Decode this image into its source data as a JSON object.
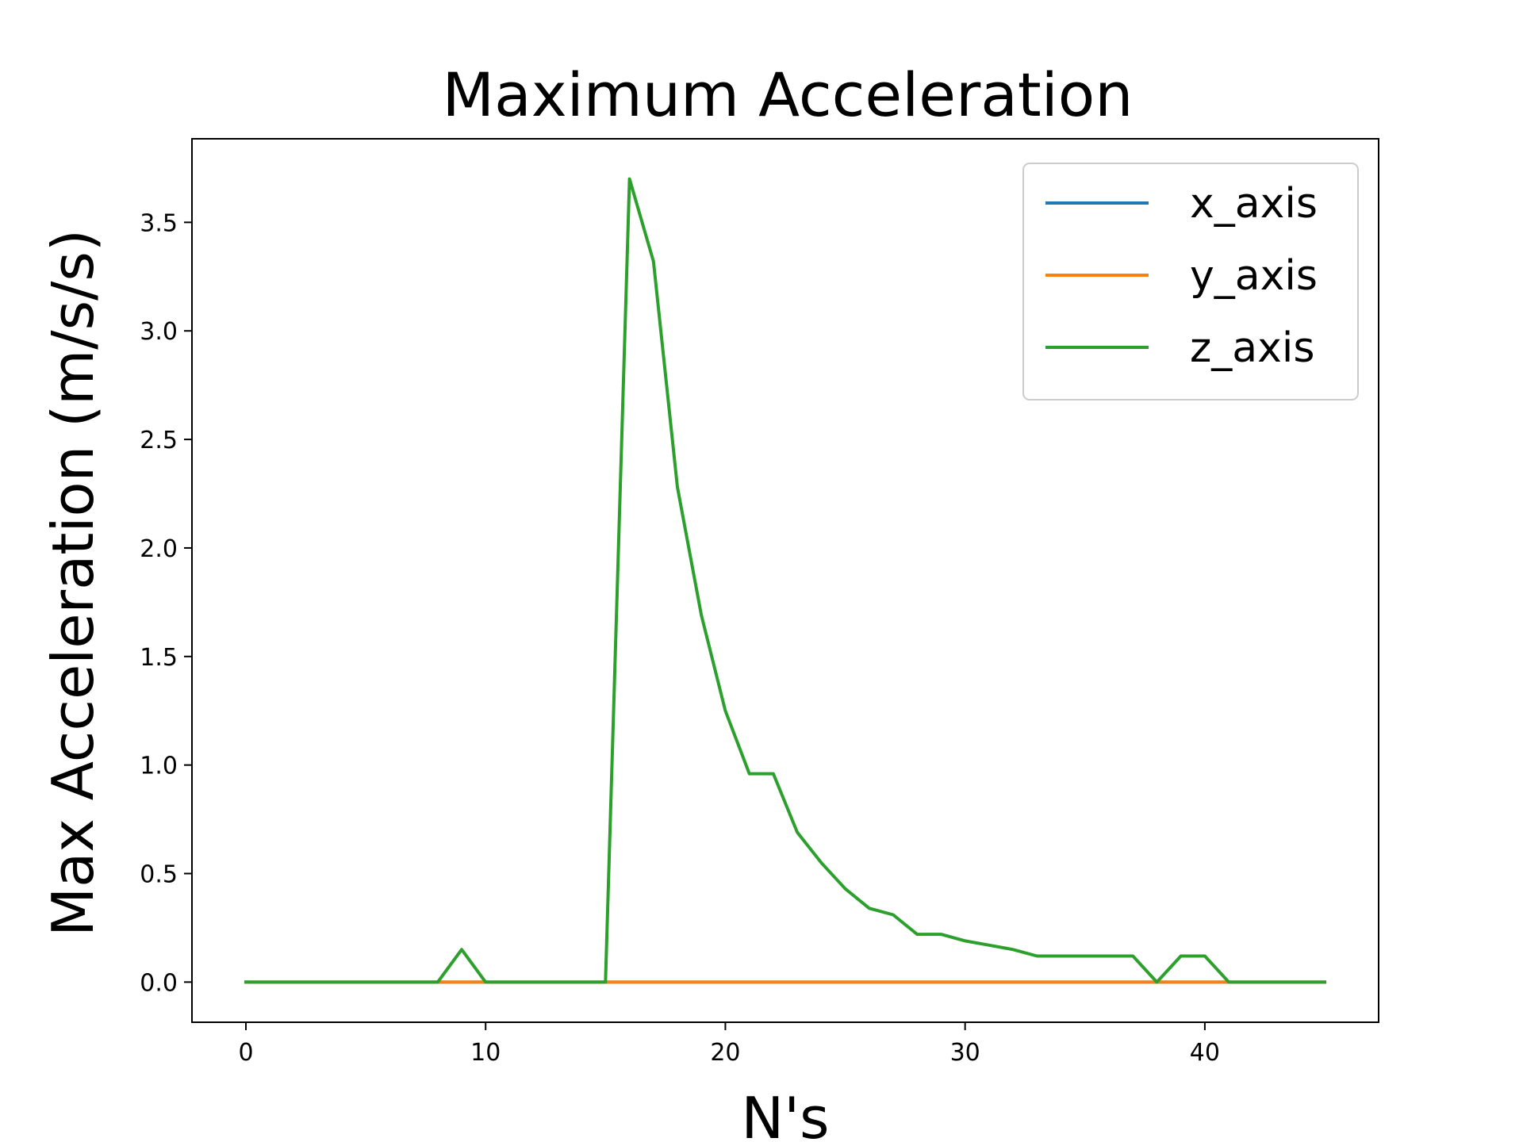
{
  "chart_data": {
    "type": "line",
    "title": "Maximum Acceleration",
    "xlabel": "N's",
    "ylabel": "Max Acceleration (m/s/s)",
    "xlim": [
      -2.25,
      47.25
    ],
    "ylim": [
      -0.185,
      3.885
    ],
    "xticks": [
      0,
      10,
      20,
      30,
      40
    ],
    "xtick_labels": [
      "0",
      "10",
      "20",
      "30",
      "40"
    ],
    "yticks": [
      0.0,
      0.5,
      1.0,
      1.5,
      2.0,
      2.5,
      3.0,
      3.5
    ],
    "ytick_labels": [
      "0.0",
      "0.5",
      "1.0",
      "1.5",
      "2.0",
      "2.5",
      "3.0",
      "3.5"
    ],
    "grid": false,
    "legend_position": "top-right",
    "x": [
      0,
      1,
      2,
      3,
      4,
      5,
      6,
      7,
      8,
      9,
      10,
      11,
      12,
      13,
      14,
      15,
      16,
      17,
      18,
      19,
      20,
      21,
      22,
      23,
      24,
      25,
      26,
      27,
      28,
      29,
      30,
      31,
      32,
      33,
      34,
      35,
      36,
      37,
      38,
      39,
      40,
      41,
      42,
      43,
      44,
      45
    ],
    "series": [
      {
        "name": "x_axis",
        "color": "#1f77b4",
        "values": [
          0,
          0,
          0,
          0,
          0,
          0,
          0,
          0,
          0,
          0,
          0,
          0,
          0,
          0,
          0,
          0,
          0,
          0,
          0,
          0,
          0,
          0,
          0,
          0,
          0,
          0,
          0,
          0,
          0,
          0,
          0,
          0,
          0,
          0,
          0,
          0,
          0,
          0,
          0,
          0,
          0,
          0,
          0,
          0,
          0,
          0
        ]
      },
      {
        "name": "y_axis",
        "color": "#ff7f0e",
        "values": [
          0,
          0,
          0,
          0,
          0,
          0,
          0,
          0,
          0,
          0,
          0,
          0,
          0,
          0,
          0,
          0,
          0,
          0,
          0,
          0,
          0,
          0,
          0,
          0,
          0,
          0,
          0,
          0,
          0,
          0,
          0,
          0,
          0,
          0,
          0,
          0,
          0,
          0,
          0,
          0,
          0,
          0,
          0,
          0,
          0,
          0
        ]
      },
      {
        "name": "z_axis",
        "color": "#2ca02c",
        "values": [
          0,
          0,
          0,
          0,
          0,
          0,
          0,
          0,
          0,
          0.15,
          0,
          0,
          0,
          0,
          0,
          0,
          3.7,
          3.32,
          2.28,
          1.69,
          1.25,
          0.96,
          0.96,
          0.69,
          0.55,
          0.43,
          0.34,
          0.31,
          0.22,
          0.22,
          0.19,
          0.17,
          0.15,
          0.12,
          0.12,
          0.12,
          0.12,
          0.12,
          0,
          0.12,
          0.12,
          0,
          0,
          0,
          0,
          0
        ]
      }
    ]
  }
}
